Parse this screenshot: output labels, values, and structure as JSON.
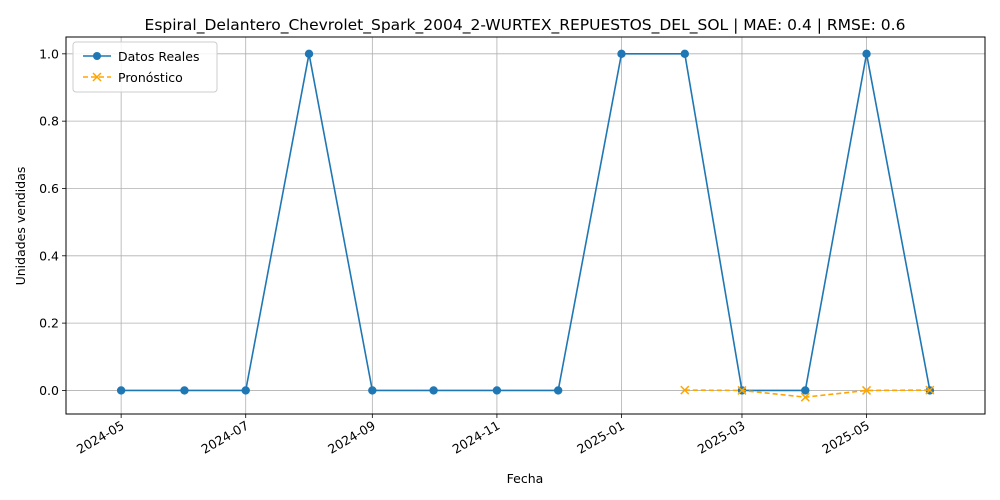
{
  "chart_data": {
    "type": "line",
    "title": "Espiral_Delantero_Chevrolet_Spark_2004_2-WURTEX_REPUESTOS_DEL_SOL | MAE: 0.4 | RMSE: 0.6",
    "xlabel": "Fecha",
    "ylabel": "Unidades vendidas",
    "xlim": [
      "2024-04-04",
      "2025-06-28"
    ],
    "ylim": [
      -0.07,
      1.05
    ],
    "grid": true,
    "legend_position": "upper-left",
    "x_ticks": [
      "2024-05-01",
      "2024-07-01",
      "2024-09-01",
      "2024-11-01",
      "2025-01-01",
      "2025-03-01",
      "2025-05-01"
    ],
    "x_tick_labels": [
      "2024-05",
      "2024-07",
      "2024-09",
      "2024-11",
      "2025-01",
      "2025-03",
      "2025-05"
    ],
    "y_ticks": [
      0.0,
      0.2,
      0.4,
      0.6,
      0.8,
      1.0
    ],
    "y_tick_labels": [
      "0.0",
      "0.2",
      "0.4",
      "0.6",
      "0.8",
      "1.0"
    ],
    "series": [
      {
        "name": "Datos Reales",
        "color": "#1f77b4",
        "marker": "circle",
        "line_style": "solid",
        "x": [
          "2024-05-01",
          "2024-06-01",
          "2024-07-01",
          "2024-08-01",
          "2024-09-01",
          "2024-10-01",
          "2024-11-01",
          "2024-12-01",
          "2025-01-01",
          "2025-02-01",
          "2025-03-01",
          "2025-04-01",
          "2025-05-01",
          "2025-06-01"
        ],
        "values": [
          0,
          0,
          0,
          1,
          0,
          0,
          0,
          0,
          1,
          1,
          0,
          0,
          1,
          0
        ]
      },
      {
        "name": "Pronóstico",
        "color": "#ffa500",
        "marker": "x",
        "line_style": "dashed",
        "x": [
          "2025-02-01",
          "2025-03-01",
          "2025-04-01",
          "2025-05-01",
          "2025-06-01"
        ],
        "values": [
          0.001,
          0.0,
          -0.02,
          0.0,
          0.001
        ]
      }
    ]
  }
}
